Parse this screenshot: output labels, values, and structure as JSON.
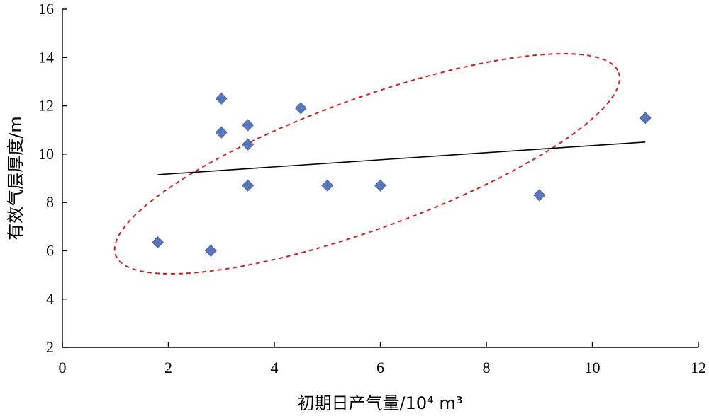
{
  "chart_data": {
    "type": "scatter",
    "title": "",
    "xlabel": "初期日产气量/10⁴ m³",
    "ylabel": "有效气层厚度/m",
    "xlim": [
      0,
      12
    ],
    "ylim": [
      2,
      16
    ],
    "x_ticks": [
      "0",
      "2",
      "4",
      "6",
      "8",
      "10",
      "12"
    ],
    "y_ticks": [
      "2",
      "4",
      "6",
      "8",
      "10",
      "12",
      "14",
      "16"
    ],
    "grid": false,
    "legend": "none",
    "series": [
      {
        "marker": "diamond",
        "color": "#5b76b8",
        "points": [
          {
            "x": 1.8,
            "y": 6.35
          },
          {
            "x": 2.8,
            "y": 6.0
          },
          {
            "x": 3.0,
            "y": 12.3
          },
          {
            "x": 3.0,
            "y": 10.9
          },
          {
            "x": 3.5,
            "y": 11.2
          },
          {
            "x": 3.5,
            "y": 10.4
          },
          {
            "x": 3.5,
            "y": 8.7
          },
          {
            "x": 4.5,
            "y": 11.9
          },
          {
            "x": 5.0,
            "y": 8.7
          },
          {
            "x": 6.0,
            "y": 8.7
          },
          {
            "x": 9.0,
            "y": 8.3
          },
          {
            "x": 11.0,
            "y": 11.5
          }
        ]
      }
    ],
    "trendline": {
      "color": "#000000",
      "from": {
        "x": 1.8,
        "y": 9.15
      },
      "to": {
        "x": 11.0,
        "y": 10.5
      }
    },
    "annotations": [
      {
        "shape": "dashed-ellipse",
        "color": "#cc2222",
        "center": {
          "x": 5.75,
          "y": 9.6
        },
        "semi_axis_x": 5.05,
        "semi_axis_y": 2.7,
        "rotation_deg": -20
      }
    ]
  }
}
